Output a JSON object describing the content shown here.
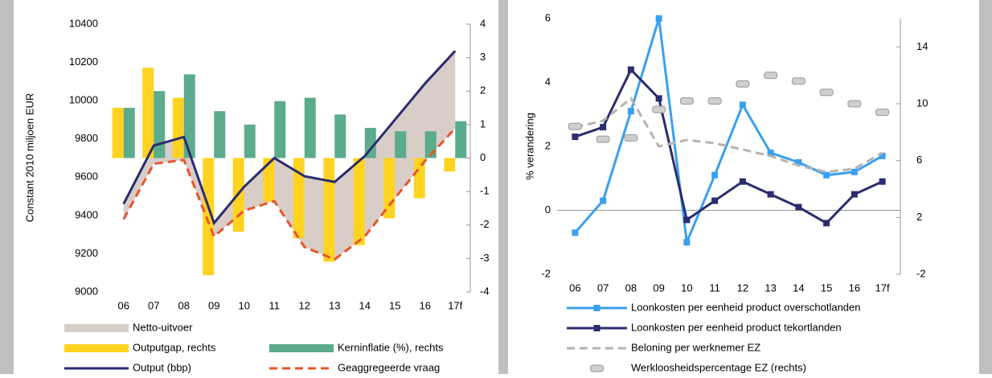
{
  "chart_data": [
    {
      "type": "combo",
      "y_label": "Constant 2010 miljoen EUR",
      "categories": [
        "06",
        "07",
        "08",
        "09",
        "10",
        "11",
        "12",
        "13",
        "14",
        "15",
        "16",
        "17f"
      ],
      "ylim": [
        9000,
        10400
      ],
      "yticks": [
        9000,
        9200,
        9400,
        9600,
        9800,
        10000,
        10200,
        10400
      ],
      "y2lim": [
        -4,
        4
      ],
      "y2ticks": [
        -4,
        -3,
        -2,
        -1,
        0,
        1,
        2,
        3,
        4
      ],
      "series": [
        {
          "name": "Netto-uitvoer",
          "kind": "area",
          "base_series": 4,
          "color": "#d9cdc8",
          "values": [
            80,
            95,
            120,
            70,
            125,
            225,
            370,
            405,
            420,
            410,
            405,
            405
          ]
        },
        {
          "name": "Outputgap, rechts",
          "kind": "bar",
          "axis": "y2",
          "color": "#ffd320",
          "values": [
            1.5,
            2.7,
            1.8,
            -3.5,
            -2.2,
            -1.3,
            -2.4,
            -3.1,
            -2.6,
            -1.8,
            -1.2,
            -0.4
          ]
        },
        {
          "name": "Kerninflatie (%), rechts",
          "kind": "bar",
          "axis": "y2",
          "color": "#5bab8c",
          "values": [
            1.5,
            2.0,
            2.5,
            1.4,
            1.0,
            1.7,
            1.8,
            1.3,
            0.9,
            0.8,
            0.8,
            1.1
          ]
        },
        {
          "name": "Output (bbp)",
          "kind": "line",
          "color": "#2b2d6e",
          "values": [
            9460,
            9765,
            9810,
            9360,
            9550,
            9700,
            9605,
            9575,
            9710,
            9900,
            10090,
            10260
          ]
        },
        {
          "name": "Geaggregeerde vraag",
          "kind": "line",
          "dashed": true,
          "color": "#e8542a",
          "values": [
            9380,
            9670,
            9690,
            9290,
            9425,
            9475,
            9235,
            9170,
            9290,
            9490,
            9685,
            9855
          ]
        }
      ]
    },
    {
      "type": "line",
      "y_label": "% verandering",
      "categories": [
        "06",
        "07",
        "08",
        "09",
        "10",
        "11",
        "12",
        "13",
        "14",
        "15",
        "16",
        "17f"
      ],
      "ylim": [
        -2,
        6
      ],
      "yticks": [
        -2,
        0,
        2,
        4,
        6
      ],
      "y2lim": [
        -2,
        16
      ],
      "y2ticks": [
        -2,
        2,
        6,
        10,
        14
      ],
      "series": [
        {
          "name": "Loonkosten per eenheid product overschotlanden",
          "marker": "square",
          "color": "#3aa0ee",
          "values": [
            -0.7,
            0.3,
            3.1,
            6.0,
            -1.0,
            1.1,
            3.3,
            1.8,
            1.5,
            1.1,
            1.2,
            1.7
          ]
        },
        {
          "name": "Loonkosten per eenheid product tekortlanden",
          "marker": "square",
          "color": "#2b2d6e",
          "values": [
            2.3,
            2.6,
            4.4,
            3.5,
            -0.3,
            0.3,
            0.9,
            0.5,
            0.1,
            -0.4,
            0.5,
            0.9
          ]
        },
        {
          "name": "Beloning per werknemer EZ",
          "dashed": true,
          "color": "#b8b2ad",
          "values": [
            2.6,
            2.8,
            3.5,
            2.0,
            2.2,
            2.1,
            1.9,
            1.7,
            1.4,
            1.2,
            1.3,
            1.8
          ]
        },
        {
          "name": "Werkloosheidspercentage EZ (rechts)",
          "marker": "pill",
          "line": false,
          "axis": "y2",
          "color": "#cfcfcf",
          "values": [
            8.4,
            7.5,
            7.6,
            9.6,
            10.2,
            10.2,
            11.4,
            12.0,
            11.6,
            10.8,
            10.0,
            9.4
          ]
        }
      ]
    }
  ]
}
